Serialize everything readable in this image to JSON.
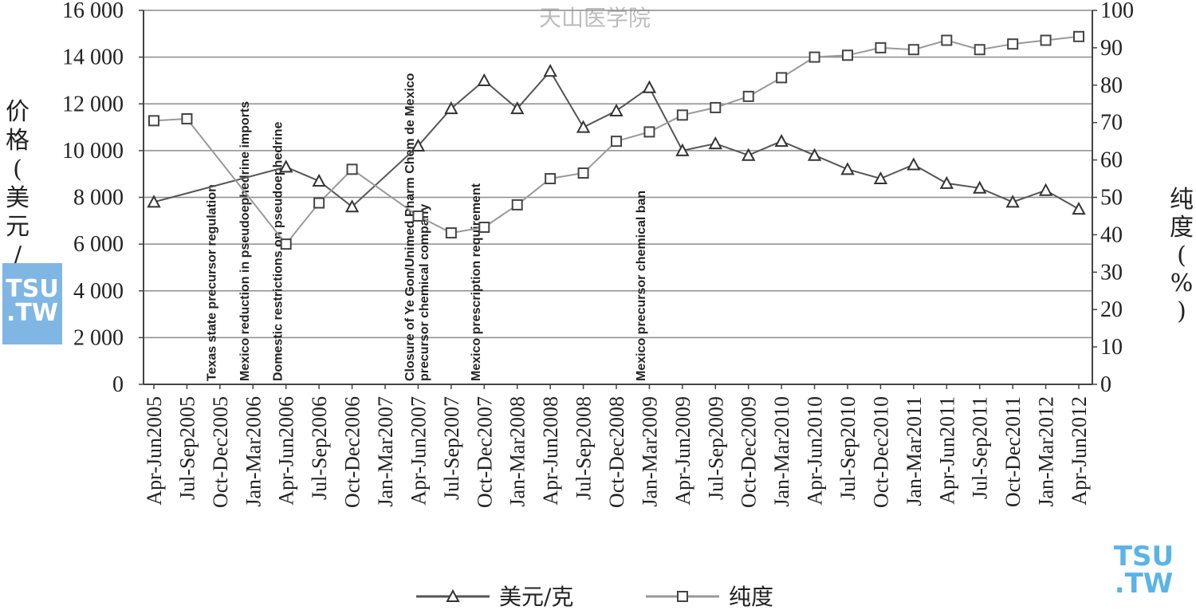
{
  "watermarks": {
    "top": "天山医学院",
    "logo_line1": "TSU",
    "logo_line2": ".TW"
  },
  "chart_data": {
    "type": "line",
    "title": "",
    "categories": [
      "Apr-Jun2005",
      "Jul-Sep2005",
      "Oct-Dec2005",
      "Jan-Mar2006",
      "Apr-Jun2006",
      "Jul-Sep2006",
      "Oct-Dec2006",
      "Jan-Mar2007",
      "Apr-Jun2007",
      "Jul-Sep2007",
      "Oct-Dec2007",
      "Jan-Mar2008",
      "Apr-Jun2008",
      "Jul-Sep2008",
      "Oct-Dec2008",
      "Jan-Mar2009",
      "Apr-Jun2009",
      "Jul-Sep2009",
      "Oct-Dec2009",
      "Jan-Mar2010",
      "Apr-Jun2010",
      "Jul-Sep2010",
      "Oct-Dec2010",
      "Jan-Mar2011",
      "Apr-Jun2011",
      "Jul-Sep2011",
      "Oct-Dec2011",
      "Jan-Mar2012",
      "Apr-Jun2012"
    ],
    "y_left": {
      "label": "价格(美元/克)",
      "min": 0,
      "max": 16000,
      "ticks": [
        0,
        2000,
        4000,
        6000,
        8000,
        10000,
        12000,
        14000,
        16000
      ],
      "tick_labels": [
        "0",
        "2 000",
        "4 000",
        "6 000",
        "8 000",
        "10 000",
        "12 000",
        "14 000",
        "16 000"
      ]
    },
    "y_right": {
      "label": "纯度(%)",
      "min": 0,
      "max": 100,
      "ticks": [
        0,
        10,
        20,
        30,
        40,
        50,
        60,
        70,
        80,
        90,
        100
      ]
    },
    "grid": true,
    "legend_position": "bottom",
    "series": [
      {
        "name": "美元/克",
        "axis": "left",
        "marker": "triangle",
        "color": "#555555",
        "values": [
          7800,
          null,
          null,
          null,
          9300,
          8700,
          7600,
          null,
          10200,
          11800,
          13000,
          11800,
          13400,
          11000,
          11700,
          12700,
          10000,
          10300,
          9800,
          10400,
          9800,
          9200,
          8800,
          9400,
          8600,
          8400,
          7800,
          8300,
          7500
        ]
      },
      {
        "name": "纯度",
        "axis": "right",
        "marker": "square",
        "color": "#999999",
        "values": [
          70.5,
          71,
          null,
          null,
          37.5,
          48.5,
          57.5,
          null,
          45,
          40.5,
          42,
          48,
          55,
          56.5,
          65,
          67.5,
          72,
          74,
          77,
          82,
          87.5,
          88,
          90,
          89.5,
          92,
          89.5,
          91,
          92,
          93
        ]
      }
    ],
    "annotations": [
      {
        "text": "Texas state precursor regulation",
        "category": "Jul-Sep2005"
      },
      {
        "text": "Mexico reduction in pseudoephedrine imports",
        "category": "Oct-Dec2005"
      },
      {
        "text": "Domestic restrictions on pseudoephedrine",
        "category": "Jan-Mar2006"
      },
      {
        "text": "Closure of Ye Gon/Unimed Pharm Chem de Mexico",
        "category": "Jan-Mar2007"
      },
      {
        "text": "precursor chemical company",
        "category": "Jan-Mar2007"
      },
      {
        "text": "Mexico prescription requirement",
        "category": "Jul-Sep2007"
      },
      {
        "text": "Mexico precursor chemical ban",
        "category": "Oct-Dec2008"
      }
    ]
  }
}
